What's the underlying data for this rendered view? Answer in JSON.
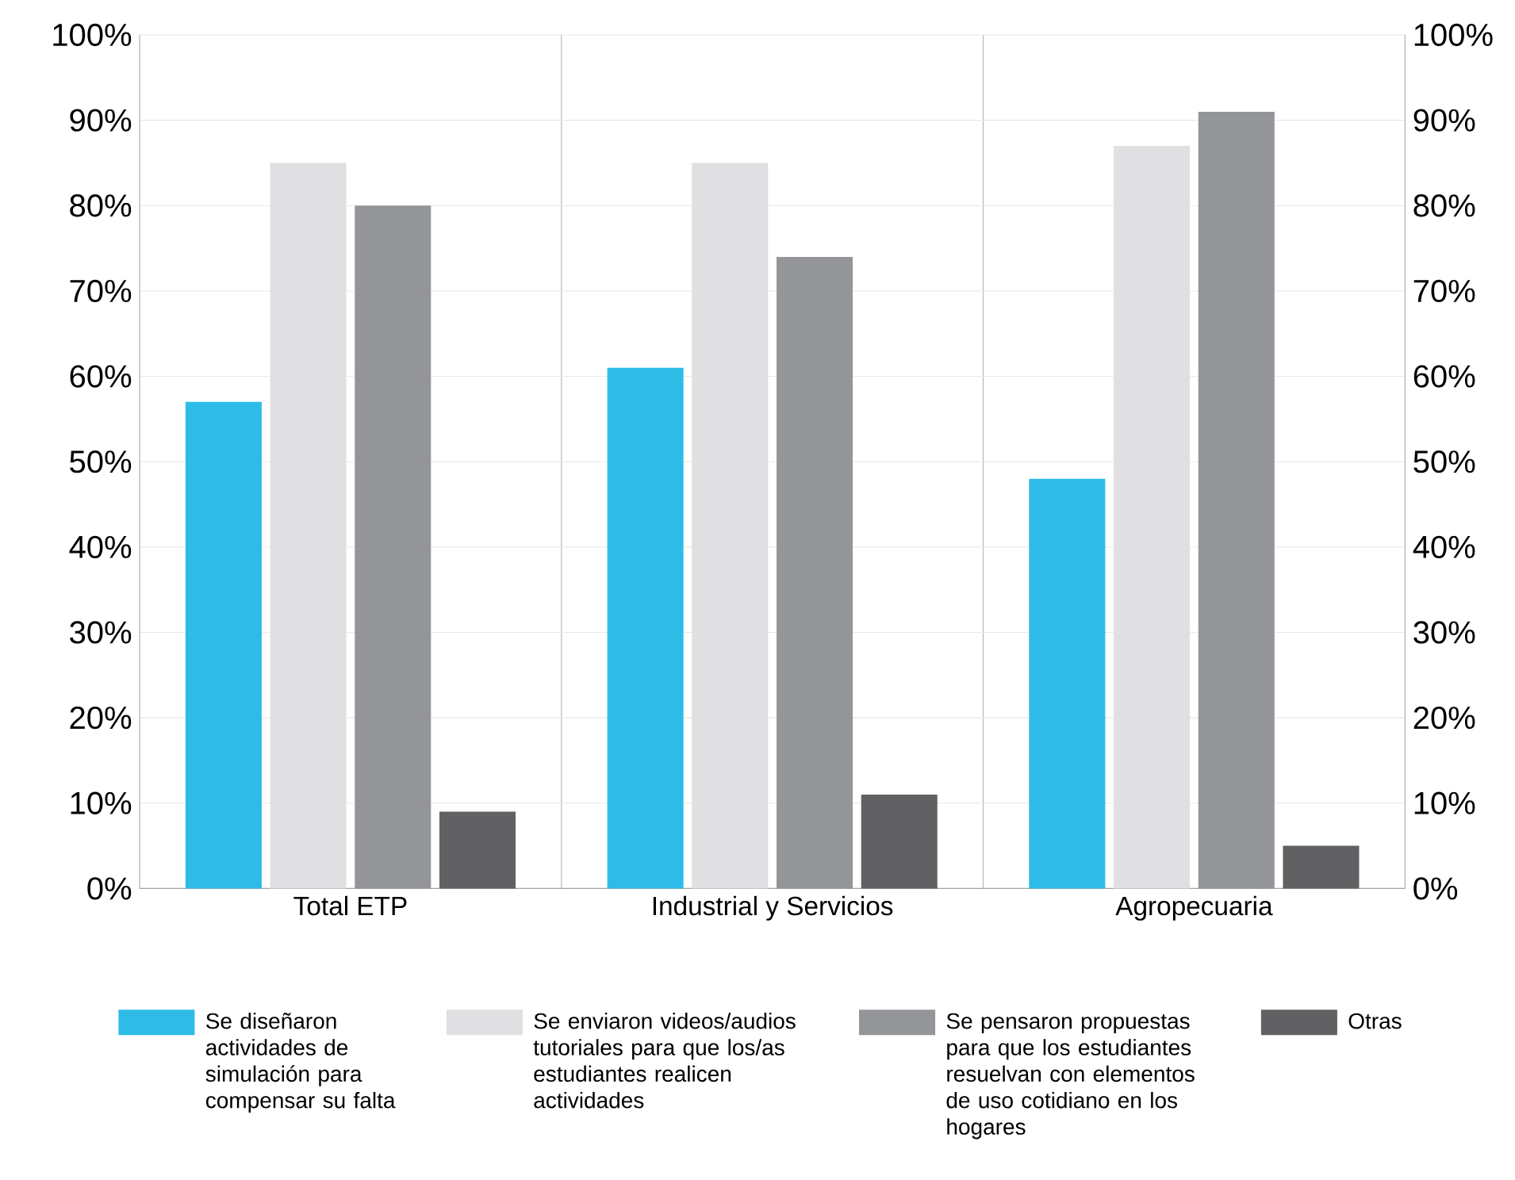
{
  "chart_data": {
    "type": "bar",
    "categories": [
      "Total ETP",
      "Industrial y Servicios",
      "Agropecuaria"
    ],
    "series": [
      {
        "name": "Se diseñaron actividades de simulación para compensar su falta",
        "color": "#2ebbe8",
        "values": [
          57,
          61,
          48
        ]
      },
      {
        "name": "Se enviaron videos/audios tutoriales para que los/as estudiantes realicen actividades",
        "color": "#e0e0e2",
        "values": [
          85,
          85,
          87
        ]
      },
      {
        "name": "Se pensaron propuestas para que los estudiantes resuelvan con elementos de uso cotidiano en los hogares",
        "color": "#939598",
        "values": [
          80,
          74,
          91
        ]
      },
      {
        "name": "Otras",
        "color": "#616163",
        "values": [
          9,
          11,
          5
        ]
      }
    ],
    "ylim": [
      0,
      100
    ],
    "yticks": [
      {
        "value": 0,
        "label": "0%"
      },
      {
        "value": 10,
        "label": "10%"
      },
      {
        "value": 20,
        "label": "20%"
      },
      {
        "value": 30,
        "label": "30%"
      },
      {
        "value": 40,
        "label": "40%"
      },
      {
        "value": 50,
        "label": "50%"
      },
      {
        "value": 60,
        "label": "60%"
      },
      {
        "value": 70,
        "label": "70%"
      },
      {
        "value": 80,
        "label": "80%"
      },
      {
        "value": 90,
        "label": "90%"
      },
      {
        "value": 100,
        "label": "100%"
      }
    ],
    "y2lim": [
      0,
      100
    ],
    "y2ticks": [
      {
        "value": 0,
        "label": "0%"
      },
      {
        "value": 10,
        "label": "10%"
      },
      {
        "value": 20,
        "label": "20%"
      },
      {
        "value": 30,
        "label": "30%"
      },
      {
        "value": 40,
        "label": "40%"
      },
      {
        "value": 50,
        "label": "50%"
      },
      {
        "value": 60,
        "label": "60%"
      },
      {
        "value": 70,
        "label": "70%"
      },
      {
        "value": 80,
        "label": "80%"
      },
      {
        "value": 90,
        "label": "90%"
      },
      {
        "value": 100,
        "label": "100%"
      }
    ],
    "grid": "y",
    "legend": "bottom"
  }
}
